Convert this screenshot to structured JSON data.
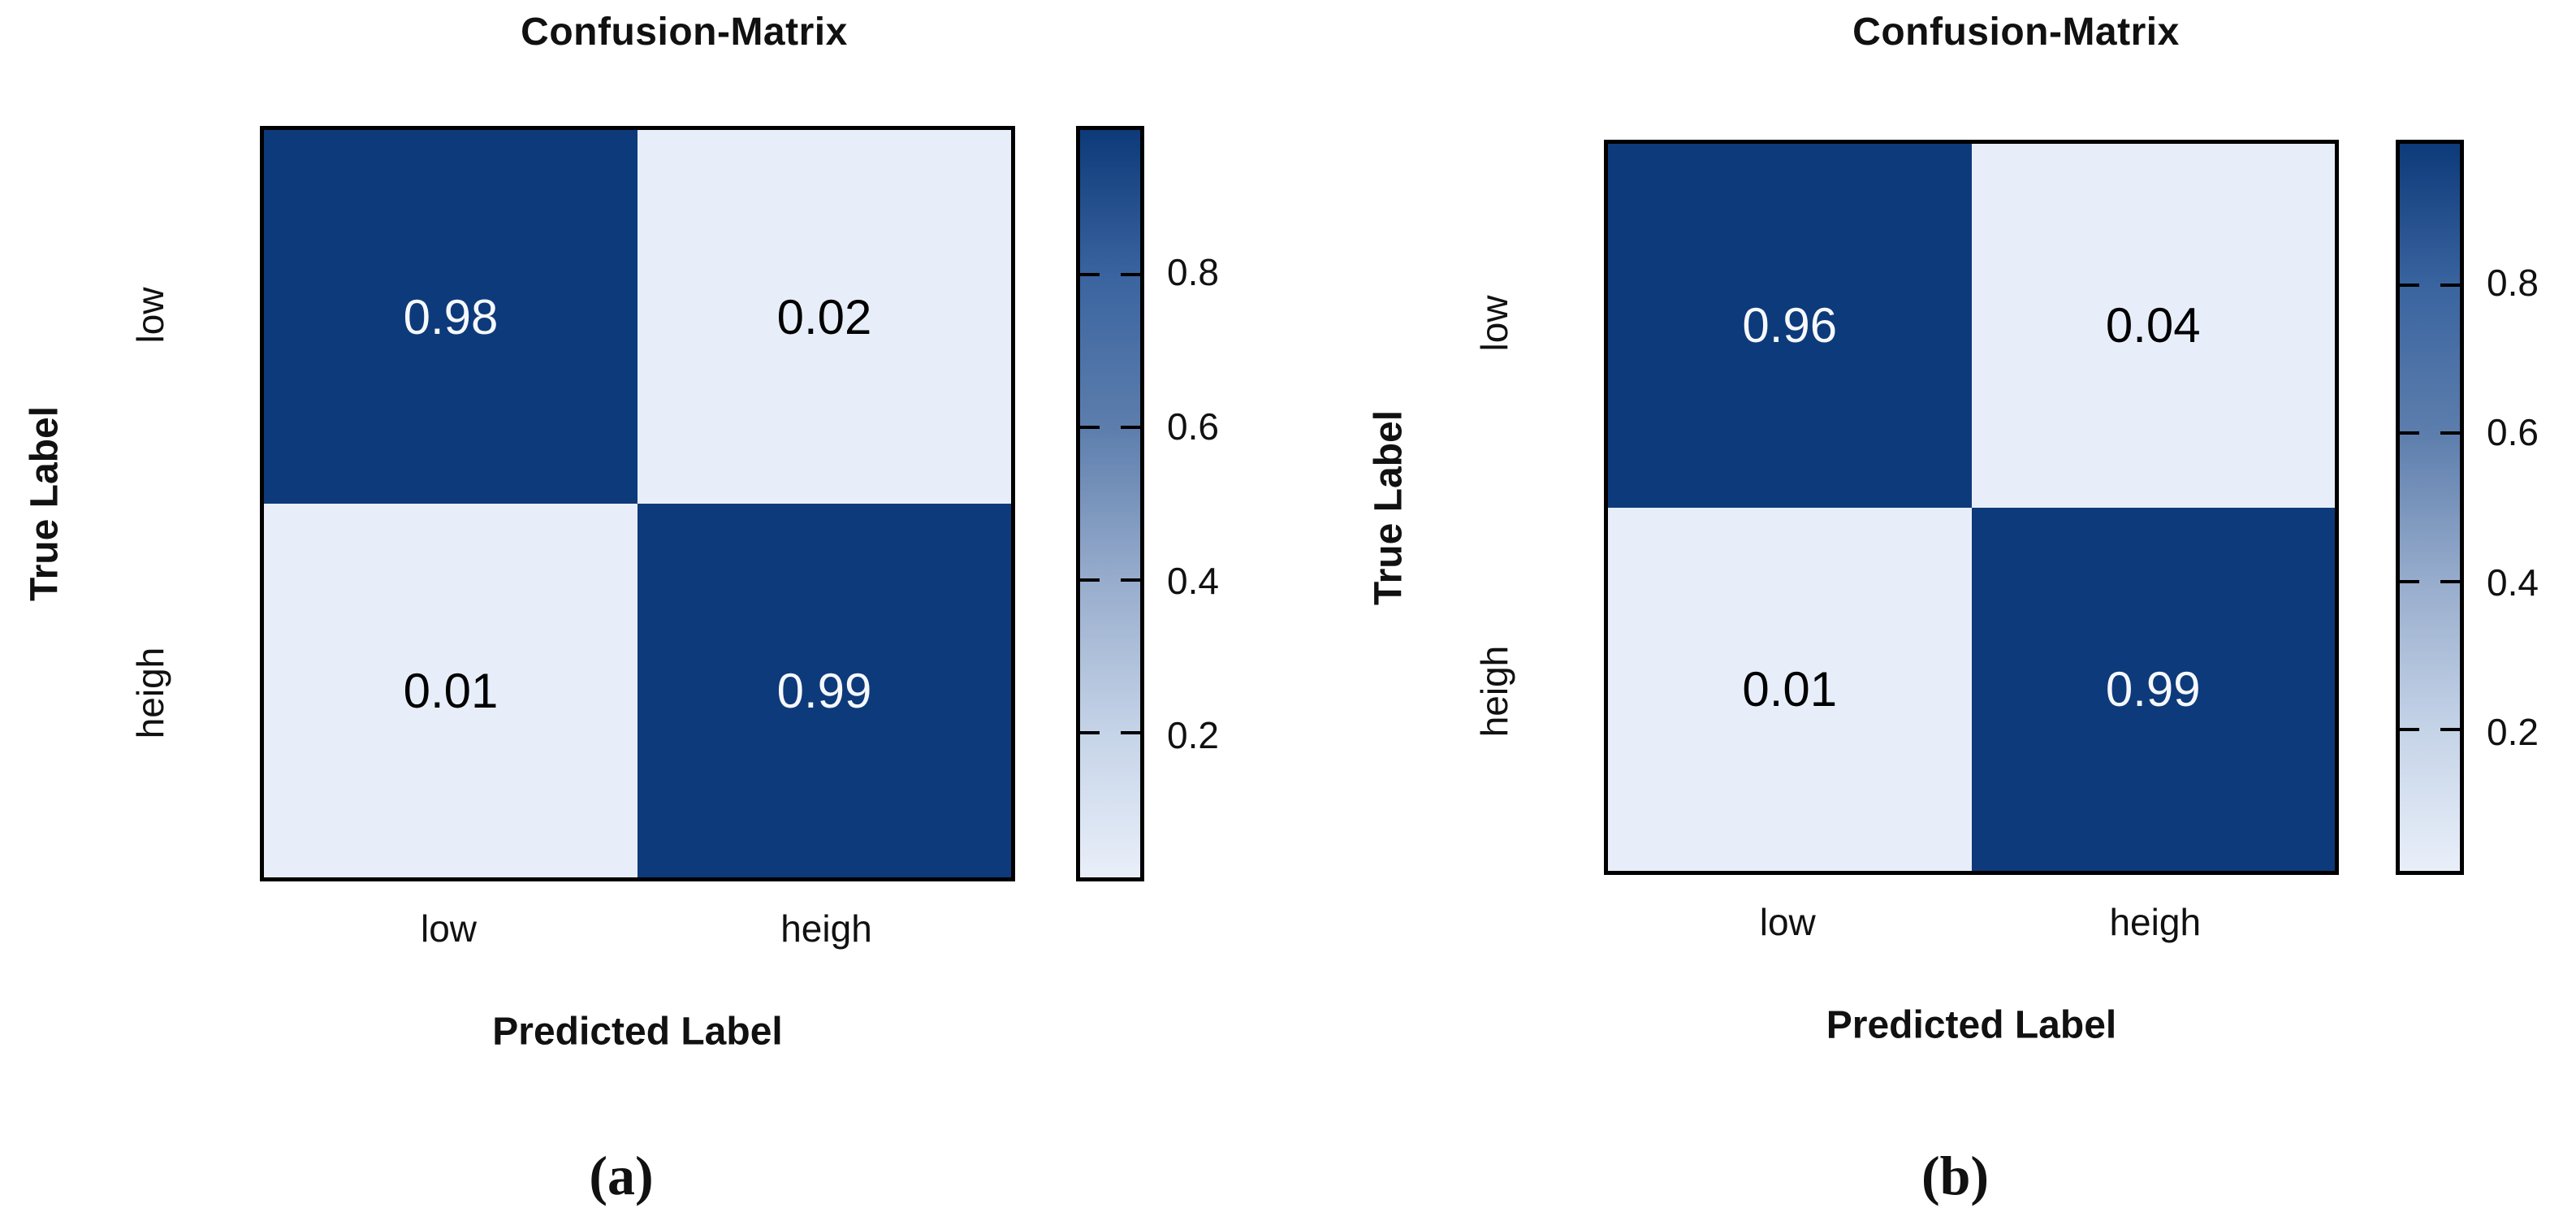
{
  "figure": {
    "colors": {
      "cell_dark": "#0d3a7a",
      "cell_light": "#e8eef9",
      "value_text_on_dark": "#ffffff",
      "value_text_on_light": "#000000",
      "border": "#000000",
      "background": "#ffffff"
    },
    "panels": [
      {
        "id": "a",
        "title": "Confusion-Matrix",
        "caption": "(a)",
        "y_axis_label": "True Label",
        "x_axis_label": "Predicted Label",
        "row_labels": [
          "low",
          "heigh"
        ],
        "col_labels": [
          "low",
          "heigh"
        ],
        "cells": [
          {
            "row": "low",
            "col": "low",
            "value": "0.98",
            "shade": "dark"
          },
          {
            "row": "low",
            "col": "heigh",
            "value": "0.02",
            "shade": "light"
          },
          {
            "row": "heigh",
            "col": "low",
            "value": "0.01",
            "shade": "light"
          },
          {
            "row": "heigh",
            "col": "heigh",
            "value": "0.99",
            "shade": "dark"
          }
        ],
        "colorbar": {
          "tick_labels": [
            "0.8",
            "0.6",
            "0.4",
            "0.2"
          ]
        }
      },
      {
        "id": "b",
        "title": "Confusion-Matrix",
        "caption": "(b)",
        "y_axis_label": "True Label",
        "x_axis_label": "Predicted Label",
        "row_labels": [
          "low",
          "heigh"
        ],
        "col_labels": [
          "low",
          "heigh"
        ],
        "cells": [
          {
            "row": "low",
            "col": "low",
            "value": "0.96",
            "shade": "dark"
          },
          {
            "row": "low",
            "col": "heigh",
            "value": "0.04",
            "shade": "light"
          },
          {
            "row": "heigh",
            "col": "low",
            "value": "0.01",
            "shade": "light"
          },
          {
            "row": "heigh",
            "col": "heigh",
            "value": "0.99",
            "shade": "dark"
          }
        ],
        "colorbar": {
          "tick_labels": [
            "0.8",
            "0.6",
            "0.4",
            "0.2"
          ]
        }
      }
    ]
  },
  "chart_data": [
    {
      "type": "heatmap",
      "panel": "a",
      "title": "Confusion-Matrix",
      "xlabel": "Predicted Label",
      "ylabel": "True Label",
      "x_categories": [
        "low",
        "heigh"
      ],
      "y_categories": [
        "low",
        "heigh"
      ],
      "values": [
        [
          0.98,
          0.02
        ],
        [
          0.01,
          0.99
        ]
      ],
      "colorbar_ticks": [
        0.8,
        0.6,
        0.4,
        0.2
      ],
      "colormap": "Blues",
      "value_range": [
        0.01,
        0.99
      ],
      "legend_position": "right"
    },
    {
      "type": "heatmap",
      "panel": "b",
      "title": "Confusion-Matrix",
      "xlabel": "Predicted Label",
      "ylabel": "True Label",
      "x_categories": [
        "low",
        "heigh"
      ],
      "y_categories": [
        "low",
        "heigh"
      ],
      "values": [
        [
          0.96,
          0.04
        ],
        [
          0.01,
          0.99
        ]
      ],
      "colorbar_ticks": [
        0.8,
        0.6,
        0.4,
        0.2
      ],
      "colormap": "Blues",
      "value_range": [
        0.01,
        0.99
      ],
      "legend_position": "right"
    }
  ]
}
